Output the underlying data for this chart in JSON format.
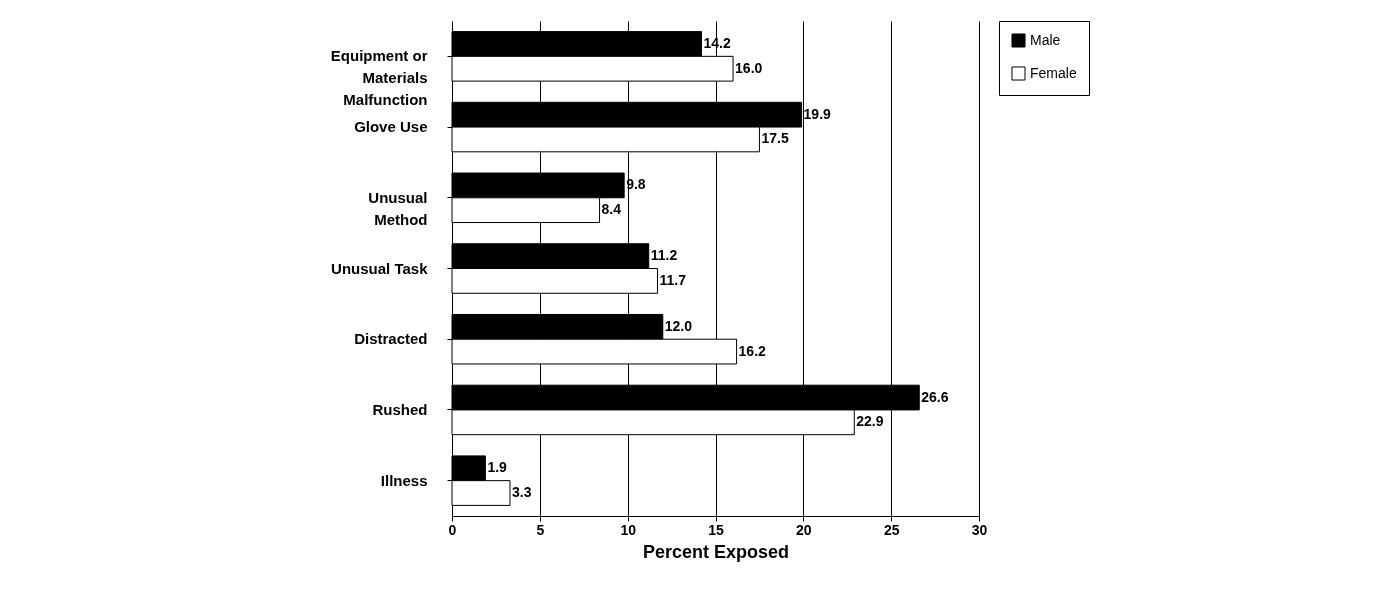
{
  "chart_data": {
    "type": "bar",
    "orientation": "horizontal",
    "xlabel": "Percent Exposed",
    "categories": [
      "Equipment or Materials Malfunction",
      "Glove Use",
      "Unusual Method",
      "Unusual Task",
      "Distracted",
      "Rushed",
      "Illness"
    ],
    "series": [
      {
        "name": "Male",
        "color": "#000000",
        "values": [
          14.2,
          19.9,
          9.8,
          11.2,
          12.0,
          26.6,
          1.9
        ],
        "value_labels": [
          "14.2",
          "19.9",
          "9.8",
          "11.2",
          "12.0",
          "26.6",
          "1.9"
        ]
      },
      {
        "name": "Female",
        "color": "#ffffff",
        "values": [
          16.0,
          17.5,
          8.4,
          11.7,
          16.2,
          22.9,
          3.3
        ],
        "value_labels": [
          "16.0",
          "17.5",
          "8.4",
          "11.7",
          "16.2",
          "22.9",
          "3.3"
        ]
      }
    ],
    "xlim": [
      0,
      30
    ],
    "xticks": [
      0,
      5,
      10,
      15,
      20,
      25,
      30
    ],
    "grid": "x",
    "legend": "right"
  }
}
